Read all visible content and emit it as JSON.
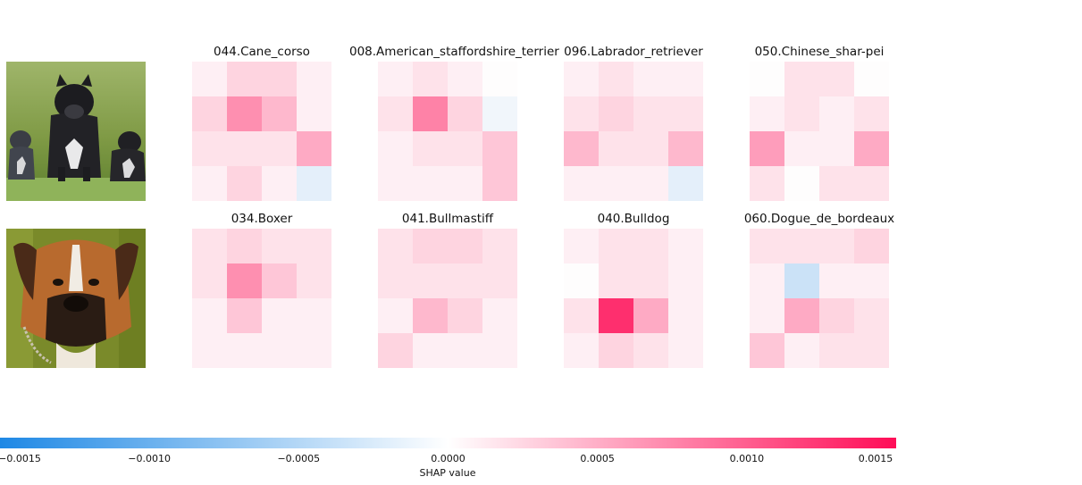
{
  "colors": {
    "negative": "#1e88e5",
    "positive": "#ff0d57",
    "neutral": "#ffffff"
  },
  "chart_data": {
    "type": "heatmap",
    "rows": [
      {
        "image": "cane-corso-dogs-photo",
        "panels": [
          {
            "title": "044.Cane_corso",
            "grid": [
              [
                0.0001,
                0.0003,
                0.0003,
                0.0001
              ],
              [
                0.0003,
                0.0008,
                0.0005,
                0.0001
              ],
              [
                0.0002,
                0.0002,
                0.0002,
                0.0006
              ],
              [
                0.0001,
                0.0003,
                0.0001,
                -0.0002
              ]
            ]
          },
          {
            "title": "008.American_staffordshire_terrier",
            "grid": [
              [
                0.0001,
                0.0002,
                0.0001,
                0.0
              ],
              [
                0.0002,
                0.0009,
                0.0003,
                -0.0001
              ],
              [
                0.0001,
                0.0002,
                0.0002,
                0.0004
              ],
              [
                0.0001,
                0.0001,
                0.0001,
                0.0004
              ]
            ]
          },
          {
            "title": "096.Labrador_retriever",
            "grid": [
              [
                0.0001,
                0.0002,
                0.0001,
                0.0001
              ],
              [
                0.0002,
                0.0003,
                0.0002,
                0.0002
              ],
              [
                0.0005,
                0.0002,
                0.0002,
                0.0005
              ],
              [
                0.0001,
                0.0001,
                0.0001,
                -0.0002
              ]
            ]
          },
          {
            "title": "050.Chinese_shar-pei",
            "grid": [
              [
                0.0,
                0.0002,
                0.0002,
                0.0
              ],
              [
                0.0001,
                0.0002,
                0.0001,
                0.0002
              ],
              [
                0.0007,
                0.0001,
                0.0001,
                0.0006
              ],
              [
                0.0002,
                0.0,
                0.0002,
                0.0002
              ]
            ]
          }
        ]
      },
      {
        "image": "boxer-dog-photo",
        "panels": [
          {
            "title": "034.Boxer",
            "grid": [
              [
                0.0002,
                0.0003,
                0.0002,
                0.0002
              ],
              [
                0.0002,
                0.0008,
                0.0004,
                0.0002
              ],
              [
                0.0001,
                0.0004,
                0.0001,
                0.0001
              ],
              [
                0.0001,
                0.0001,
                0.0001,
                0.0001
              ]
            ]
          },
          {
            "title": "041.Bullmastiff",
            "grid": [
              [
                0.0002,
                0.0003,
                0.0003,
                0.0002
              ],
              [
                0.0002,
                0.0002,
                0.0002,
                0.0002
              ],
              [
                0.0001,
                0.0005,
                0.0003,
                0.0001
              ],
              [
                0.0003,
                0.0001,
                0.0001,
                0.0001
              ]
            ]
          },
          {
            "title": "040.Bulldog",
            "grid": [
              [
                0.0001,
                0.0002,
                0.0002,
                0.0001
              ],
              [
                0.0,
                0.0002,
                0.0002,
                0.0001
              ],
              [
                0.0002,
                0.0015,
                0.0006,
                0.0001
              ],
              [
                0.0001,
                0.0003,
                0.0002,
                0.0001
              ]
            ]
          },
          {
            "title": "060.Dogue_de_bordeaux",
            "grid": [
              [
                0.0002,
                0.0002,
                0.0002,
                0.0003
              ],
              [
                0.0001,
                -0.0004,
                0.0001,
                0.0001
              ],
              [
                0.0001,
                0.0006,
                0.0003,
                0.0002
              ],
              [
                0.0004,
                0.0001,
                0.0002,
                0.0002
              ]
            ]
          }
        ]
      }
    ],
    "colorbar": {
      "label": "SHAP value",
      "range": [
        -0.0015,
        0.0015
      ],
      "ticks": [
        -0.0015,
        -0.001,
        -0.0005,
        0.0,
        0.0005,
        0.001,
        0.0015
      ],
      "tick_labels": [
        "−0.0015",
        "−0.0010",
        "−0.0005",
        "0.0000",
        "0.0005",
        "0.0010",
        "0.0015"
      ]
    }
  }
}
